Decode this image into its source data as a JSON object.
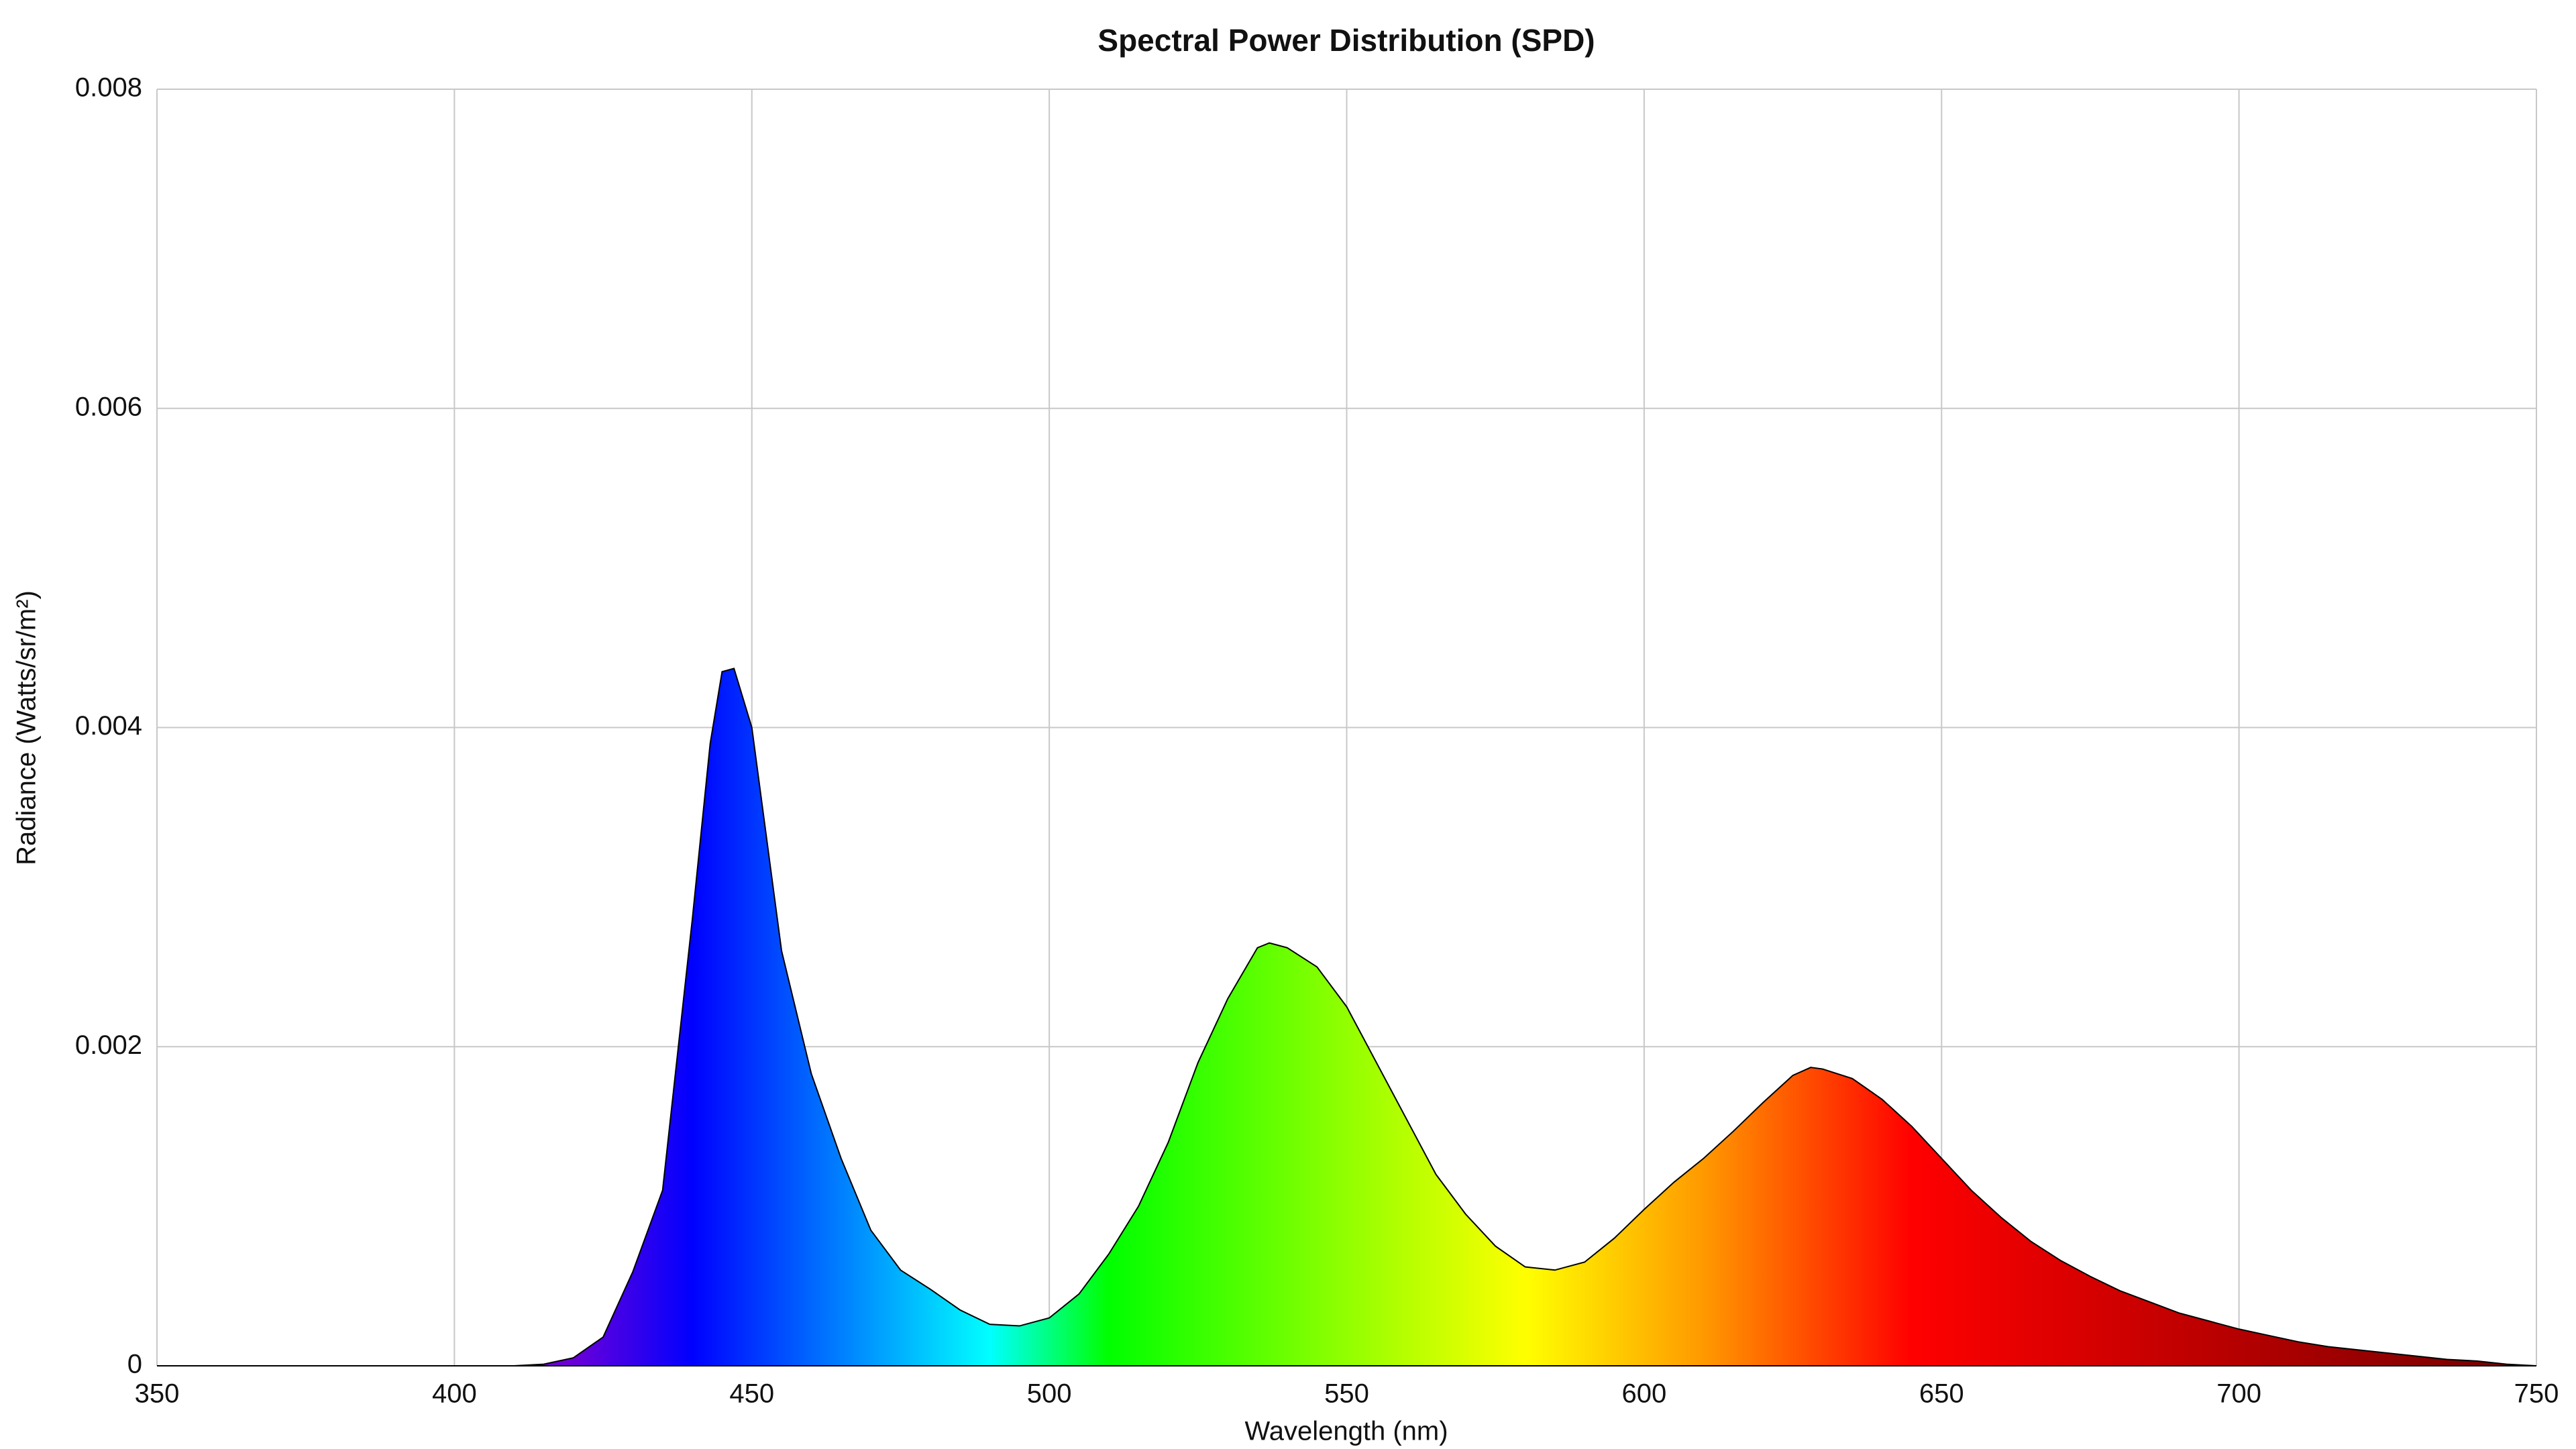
{
  "chart_data": {
    "type": "area",
    "title": "Spectral Power Distribution (SPD)",
    "x_label": "Wavelength (nm)",
    "y_label": "Radiance (Watts/sr/m²)",
    "x": [
      350,
      355,
      360,
      365,
      370,
      375,
      380,
      385,
      390,
      395,
      400,
      405,
      410,
      415,
      420,
      425,
      430,
      435,
      440,
      443,
      445,
      447,
      450,
      455,
      460,
      465,
      470,
      475,
      480,
      485,
      490,
      495,
      500,
      505,
      510,
      515,
      520,
      525,
      530,
      535,
      537,
      540,
      545,
      550,
      555,
      560,
      565,
      570,
      575,
      580,
      585,
      590,
      595,
      600,
      605,
      610,
      615,
      620,
      625,
      628,
      630,
      635,
      640,
      645,
      650,
      655,
      660,
      665,
      670,
      675,
      680,
      685,
      690,
      695,
      700,
      705,
      710,
      715,
      720,
      725,
      730,
      735,
      740,
      745,
      750
    ],
    "values": [
      0,
      0,
      0,
      0,
      0,
      0,
      0,
      0,
      0,
      0,
      0,
      0,
      0,
      1e-05,
      5e-05,
      0.00018,
      0.00059,
      0.0011,
      0.0028,
      0.0039,
      0.00435,
      0.00437,
      0.004,
      0.0026,
      0.00183,
      0.0013,
      0.00085,
      0.0006,
      0.00048,
      0.00035,
      0.00026,
      0.00025,
      0.0003,
      0.00045,
      0.0007,
      0.001,
      0.0014,
      0.0019,
      0.0023,
      0.00262,
      0.00265,
      0.00262,
      0.0025,
      0.00225,
      0.0019,
      0.00155,
      0.0012,
      0.00095,
      0.00075,
      0.00062,
      0.0006,
      0.00065,
      0.0008,
      0.00098,
      0.00115,
      0.0013,
      0.00147,
      0.00165,
      0.00182,
      0.00187,
      0.00186,
      0.0018,
      0.00167,
      0.0015,
      0.0013,
      0.0011,
      0.00093,
      0.00078,
      0.00066,
      0.00056,
      0.00047,
      0.0004,
      0.00033,
      0.00028,
      0.00023,
      0.00019,
      0.00015,
      0.00012,
      0.0001,
      8e-05,
      6e-05,
      4e-05,
      3e-05,
      1e-05,
      0
    ],
    "xlim": [
      350,
      750
    ],
    "xticks": [
      350,
      400,
      450,
      500,
      550,
      600,
      650,
      700,
      750
    ],
    "ylim": [
      0,
      0.008
    ],
    "yticks": [
      0,
      0.002,
      0.004,
      0.006,
      0.008
    ],
    "grid": true
  }
}
